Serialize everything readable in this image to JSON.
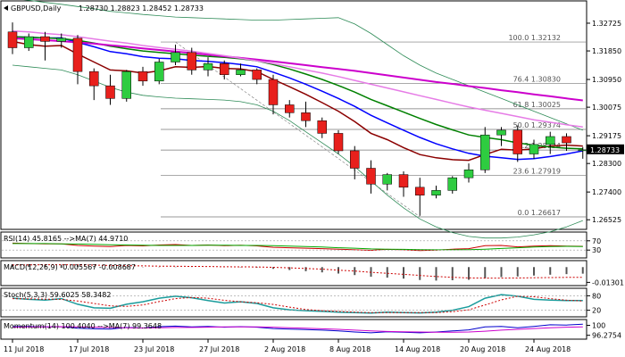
{
  "chart_data": {
    "type": "candlestick",
    "symbol_header": "GBPUSD,Daily",
    "ohlc_header": "1.28730 1.28823 1.28452 1.28733",
    "last_price": "1.28733",
    "main_y_ticks": [
      "1.32725",
      "1.31850",
      "1.30950",
      "1.30075",
      "1.29175",
      "1.28300",
      "1.27400",
      "1.26525"
    ],
    "main_ylim": [
      1.2625,
      1.334
    ],
    "x_tick_labels": [
      {
        "label": "11 Jul 2018",
        "index": 0
      },
      {
        "label": "17 Jul 2018",
        "index": 4
      },
      {
        "label": "23 Jul 2018",
        "index": 8
      },
      {
        "label": "27 Jul 2018",
        "index": 12
      },
      {
        "label": "2 Aug 2018",
        "index": 16
      },
      {
        "label": "8 Aug 2018",
        "index": 20
      },
      {
        "label": "14 Aug 2018",
        "index": 24
      },
      {
        "label": "20 Aug 2018",
        "index": 28
      },
      {
        "label": "24 Aug 2018",
        "index": 32
      }
    ],
    "fib_levels": [
      {
        "label": "100.0 1.32132",
        "value": 1.32132
      },
      {
        "label": "76.4 1.30830",
        "value": 1.3083
      },
      {
        "label": "61.8 1.30025",
        "value": 1.30025
      },
      {
        "label": "50.0 1.29374",
        "value": 1.29374
      },
      {
        "label": "38.2 1.28724",
        "value": 1.28724
      },
      {
        "label": "23.6 1.27919",
        "value": 1.27919
      },
      {
        "label": "0.0 1.26617",
        "value": 1.26617
      }
    ],
    "candles": [
      [
        1.3245,
        1.3275,
        1.3175,
        1.3195
      ],
      [
        1.3195,
        1.324,
        1.3185,
        1.323
      ],
      [
        1.323,
        1.3245,
        1.3155,
        1.3215
      ],
      [
        1.3215,
        1.324,
        1.3195,
        1.3225
      ],
      [
        1.3225,
        1.3235,
        1.308,
        1.312
      ],
      [
        1.312,
        1.313,
        1.303,
        1.3075
      ],
      [
        1.3075,
        1.311,
        1.3015,
        1.3035
      ],
      [
        1.3035,
        1.3125,
        1.3025,
        1.312
      ],
      [
        1.312,
        1.3135,
        1.3075,
        1.309
      ],
      [
        1.309,
        1.316,
        1.308,
        1.315
      ],
      [
        1.315,
        1.3205,
        1.314,
        1.318
      ],
      [
        1.318,
        1.3195,
        1.311,
        1.3125
      ],
      [
        1.3125,
        1.3165,
        1.3105,
        1.3145
      ],
      [
        1.3145,
        1.3155,
        1.3095,
        1.311
      ],
      [
        1.311,
        1.3145,
        1.3105,
        1.3125
      ],
      [
        1.3125,
        1.313,
        1.308,
        1.3095
      ],
      [
        1.3095,
        1.311,
        1.2985,
        1.3015
      ],
      [
        1.3015,
        1.303,
        1.2975,
        1.299
      ],
      [
        1.299,
        1.3025,
        1.2945,
        1.2965
      ],
      [
        1.2965,
        1.2975,
        1.291,
        1.2925
      ],
      [
        1.2925,
        1.2935,
        1.286,
        1.287
      ],
      [
        1.287,
        1.2885,
        1.278,
        1.2815
      ],
      [
        1.2815,
        1.284,
        1.2735,
        1.2765
      ],
      [
        1.2765,
        1.28,
        1.2745,
        1.2795
      ],
      [
        1.2795,
        1.2805,
        1.2725,
        1.2755
      ],
      [
        1.2755,
        1.2785,
        1.2665,
        1.273
      ],
      [
        1.273,
        1.276,
        1.272,
        1.2745
      ],
      [
        1.2745,
        1.279,
        1.2735,
        1.2785
      ],
      [
        1.2785,
        1.283,
        1.277,
        1.281
      ],
      [
        1.281,
        1.2945,
        1.28,
        1.292
      ],
      [
        1.292,
        1.2945,
        1.2885,
        1.2935
      ],
      [
        1.2935,
        1.295,
        1.2835,
        1.286
      ],
      [
        1.286,
        1.2905,
        1.2845,
        1.289
      ],
      [
        1.289,
        1.293,
        1.286,
        1.2915
      ],
      [
        1.2915,
        1.2925,
        1.287,
        1.2895
      ],
      [
        1.2873,
        1.2882,
        1.2845,
        1.2873
      ]
    ],
    "rsi": {
      "header": "RSI(14) 45.8165 -->MA(7) 44.9710",
      "y_ticks": [
        "70",
        "30"
      ],
      "ylim": [
        0,
        100
      ],
      "values": [
        60,
        58,
        57,
        57,
        50,
        47,
        45,
        50,
        48,
        52,
        54,
        50,
        52,
        49,
        51,
        48,
        42,
        40,
        38,
        36,
        34,
        31,
        29,
        33,
        31,
        28,
        30,
        34,
        36,
        49,
        50,
        44,
        47,
        49,
        47,
        46
      ],
      "ma": [
        58,
        58,
        58,
        57,
        56,
        55,
        53,
        52,
        51,
        50,
        50,
        50,
        51,
        51,
        50,
        50,
        49,
        47,
        45,
        43,
        40,
        38,
        35,
        34,
        33,
        32,
        31,
        31,
        32,
        34,
        37,
        40,
        43,
        45,
        46,
        45
      ]
    },
    "macd": {
      "header": "MACD(12,26,9) -0.005567 -0.008687",
      "y_ticks": [
        "-0.01301"
      ],
      "ylim": [
        -0.015,
        0.004
      ],
      "histogram": [
        0.002,
        0.0022,
        0.0021,
        0.0021,
        0.0015,
        0.001,
        0.0005,
        0.0004,
        0.0002,
        0.0002,
        0.0003,
        0.0001,
        0.0,
        -0.0002,
        -0.0003,
        -0.0005,
        -0.0015,
        -0.0025,
        -0.0035,
        -0.0045,
        -0.0055,
        -0.0068,
        -0.0082,
        -0.009,
        -0.0098,
        -0.011,
        -0.0115,
        -0.0112,
        -0.0108,
        -0.0095,
        -0.0085,
        -0.008,
        -0.0072,
        -0.0065,
        -0.006,
        -0.0056
      ],
      "signal": [
        0.0018,
        0.0019,
        0.002,
        0.002,
        0.0019,
        0.0017,
        0.0014,
        0.0012,
        0.001,
        0.0008,
        0.0007,
        0.0006,
        0.0005,
        0.0003,
        0.0002,
        0.0001,
        -0.0002,
        -0.0006,
        -0.0012,
        -0.0018,
        -0.0026,
        -0.0034,
        -0.0044,
        -0.0053,
        -0.0062,
        -0.0071,
        -0.008,
        -0.0087,
        -0.0092,
        -0.0094,
        -0.0094,
        -0.0093,
        -0.0091,
        -0.0089,
        -0.0088,
        -0.0087
      ]
    },
    "stoch": {
      "header": "Stoch(5,3,3) 59.6025 58.3482",
      "y_ticks": [
        "80",
        "20"
      ],
      "ylim": [
        0,
        100
      ],
      "k": [
        70,
        65,
        62,
        68,
        45,
        30,
        28,
        45,
        55,
        70,
        78,
        72,
        60,
        50,
        55,
        48,
        30,
        22,
        18,
        15,
        12,
        10,
        8,
        12,
        10,
        9,
        12,
        20,
        35,
        70,
        85,
        78,
        65,
        62,
        60,
        60
      ],
      "d": [
        68,
        67,
        66,
        65,
        58,
        48,
        38,
        36,
        42,
        56,
        68,
        73,
        70,
        61,
        55,
        51,
        44,
        33,
        23,
        18,
        15,
        12,
        10,
        10,
        10,
        10,
        10,
        14,
        22,
        42,
        63,
        78,
        76,
        68,
        62,
        58
      ]
    },
    "momentum": {
      "header": "Momentum(14) 100.4040 -->MA(7) 99.3648",
      "y_ticks": [
        "100",
        "96.2754"
      ],
      "ylim": [
        95.5,
        101.5
      ],
      "values": [
        99.5,
        99.6,
        99.4,
        99.5,
        98.9,
        98.7,
        98.6,
        99.2,
        99.0,
        99.5,
        99.7,
        99.4,
        99.6,
        99.3,
        99.5,
        99.3,
        98.8,
        98.6,
        98.4,
        98.2,
        97.9,
        97.5,
        97.2,
        97.6,
        97.4,
        97.2,
        97.5,
        97.9,
        98.3,
        99.4,
        99.6,
        99.1,
        99.6,
        100.2,
        100.1,
        100.4
      ],
      "ma": [
        99.3,
        99.4,
        99.4,
        99.5,
        99.4,
        99.3,
        99.2,
        99.1,
        99.0,
        99.1,
        99.2,
        99.2,
        99.3,
        99.4,
        99.4,
        99.4,
        99.3,
        99.1,
        98.9,
        98.7,
        98.5,
        98.2,
        97.9,
        97.7,
        97.6,
        97.5,
        97.4,
        97.4,
        97.5,
        97.8,
        98.2,
        98.5,
        98.8,
        99.1,
        99.3,
        99.4
      ]
    },
    "moving_averages": [
      {
        "color": "#8b0000",
        "width": 1.5,
        "values": [
          1.3215,
          1.3205,
          1.32,
          1.3202,
          1.3175,
          1.315,
          1.3125,
          1.3122,
          1.3115,
          1.3122,
          1.3135,
          1.3133,
          1.3136,
          1.313,
          1.3128,
          1.312,
          1.3095,
          1.3072,
          1.3048,
          1.3022,
          1.2995,
          1.2962,
          1.2925,
          1.2905,
          1.288,
          1.2858,
          1.2848,
          1.2842,
          1.284,
          1.2858,
          1.2875,
          1.2872,
          1.2876,
          1.2885,
          1.2888,
          1.2885
        ]
      },
      {
        "color": "#0000ff",
        "width": 1.5,
        "values": [
          1.323,
          1.3228,
          1.3226,
          1.3226,
          1.3212,
          1.3198,
          1.3183,
          1.3176,
          1.3167,
          1.3162,
          1.316,
          1.3155,
          1.3152,
          1.3148,
          1.3142,
          1.3135,
          1.3118,
          1.31,
          1.308,
          1.3058,
          1.3035,
          1.301,
          1.2982,
          1.2958,
          1.2935,
          1.2912,
          1.2892,
          1.2876,
          1.2862,
          1.2853,
          1.2848,
          1.2843,
          1.2845,
          1.2852,
          1.286,
          1.287
        ]
      },
      {
        "color": "#008000",
        "width": 1.5,
        "values": [
          1.323,
          1.3228,
          1.3226,
          1.3224,
          1.3218,
          1.321,
          1.32,
          1.3192,
          1.3185,
          1.318,
          1.3176,
          1.3172,
          1.3168,
          1.3165,
          1.316,
          1.3154,
          1.3142,
          1.3128,
          1.3112,
          1.3095,
          1.3076,
          1.3055,
          1.3032,
          1.3012,
          1.2992,
          1.2972,
          1.2953,
          1.2936,
          1.292,
          1.2912,
          1.2905,
          1.2895,
          1.2888,
          1.2882,
          1.2878,
          1.2876
        ]
      },
      {
        "color": "#cc00cc",
        "width": 2,
        "values": [
          1.3225,
          1.3222,
          1.3219,
          1.3216,
          1.3212,
          1.3208,
          1.3203,
          1.3198,
          1.3193,
          1.3188,
          1.3183,
          1.3178,
          1.3173,
          1.3168,
          1.3163,
          1.3158,
          1.3152,
          1.3146,
          1.314,
          1.3134,
          1.3128,
          1.3122,
          1.3115,
          1.3108,
          1.3101,
          1.3094,
          1.3087,
          1.3081,
          1.3074,
          1.3068,
          1.3061,
          1.3055,
          1.3048,
          1.3042,
          1.3035,
          1.3029
        ]
      },
      {
        "color": "#e67ce6",
        "width": 1.5,
        "values": [
          1.3248,
          1.3245,
          1.324,
          1.3236,
          1.323,
          1.3223,
          1.3216,
          1.321,
          1.3202,
          1.3196,
          1.319,
          1.3184,
          1.3177,
          1.317,
          1.3162,
          1.3154,
          1.3145,
          1.3135,
          1.3125,
          1.3115,
          1.3104,
          1.3092,
          1.308,
          1.3068,
          1.3056,
          1.3044,
          1.3032,
          1.302,
          1.3008,
          1.2998,
          1.2988,
          1.2978,
          1.2968,
          1.296,
          1.2952,
          1.2945
        ]
      }
    ],
    "bands": {
      "color": "#2e8b57",
      "upper": [
        1.335,
        1.3345,
        1.3338,
        1.3332,
        1.3325,
        1.3318,
        1.331,
        1.3305,
        1.33,
        1.3296,
        1.3292,
        1.329,
        1.3288,
        1.3286,
        1.3284,
        1.3282,
        1.3282,
        1.3284,
        1.3286,
        1.3288,
        1.329,
        1.327,
        1.324,
        1.3205,
        1.317,
        1.314,
        1.3115,
        1.3095,
        1.3075,
        1.3055,
        1.3035,
        1.3015,
        1.2995,
        1.2975,
        1.2955,
        1.2935
      ],
      "lower": [
        1.314,
        1.3135,
        1.313,
        1.3125,
        1.311,
        1.309,
        1.307,
        1.3055,
        1.3045,
        1.304,
        1.3036,
        1.3034,
        1.3032,
        1.303,
        1.3025,
        1.3015,
        1.2995,
        1.2965,
        1.293,
        1.2895,
        1.286,
        1.282,
        1.2775,
        1.273,
        1.269,
        1.2655,
        1.263,
        1.2612,
        1.26,
        1.2595,
        1.2595,
        1.2598,
        1.2605,
        1.2615,
        1.263,
        1.265
      ]
    }
  },
  "colors": {
    "bull": "#2ecc40",
    "bear": "#e8201c",
    "wick": "#000000",
    "grid": "#cccccc",
    "fib_line": "#777777",
    "price_tag_bg": "#000000",
    "price_tag_fg": "#ffffff"
  }
}
